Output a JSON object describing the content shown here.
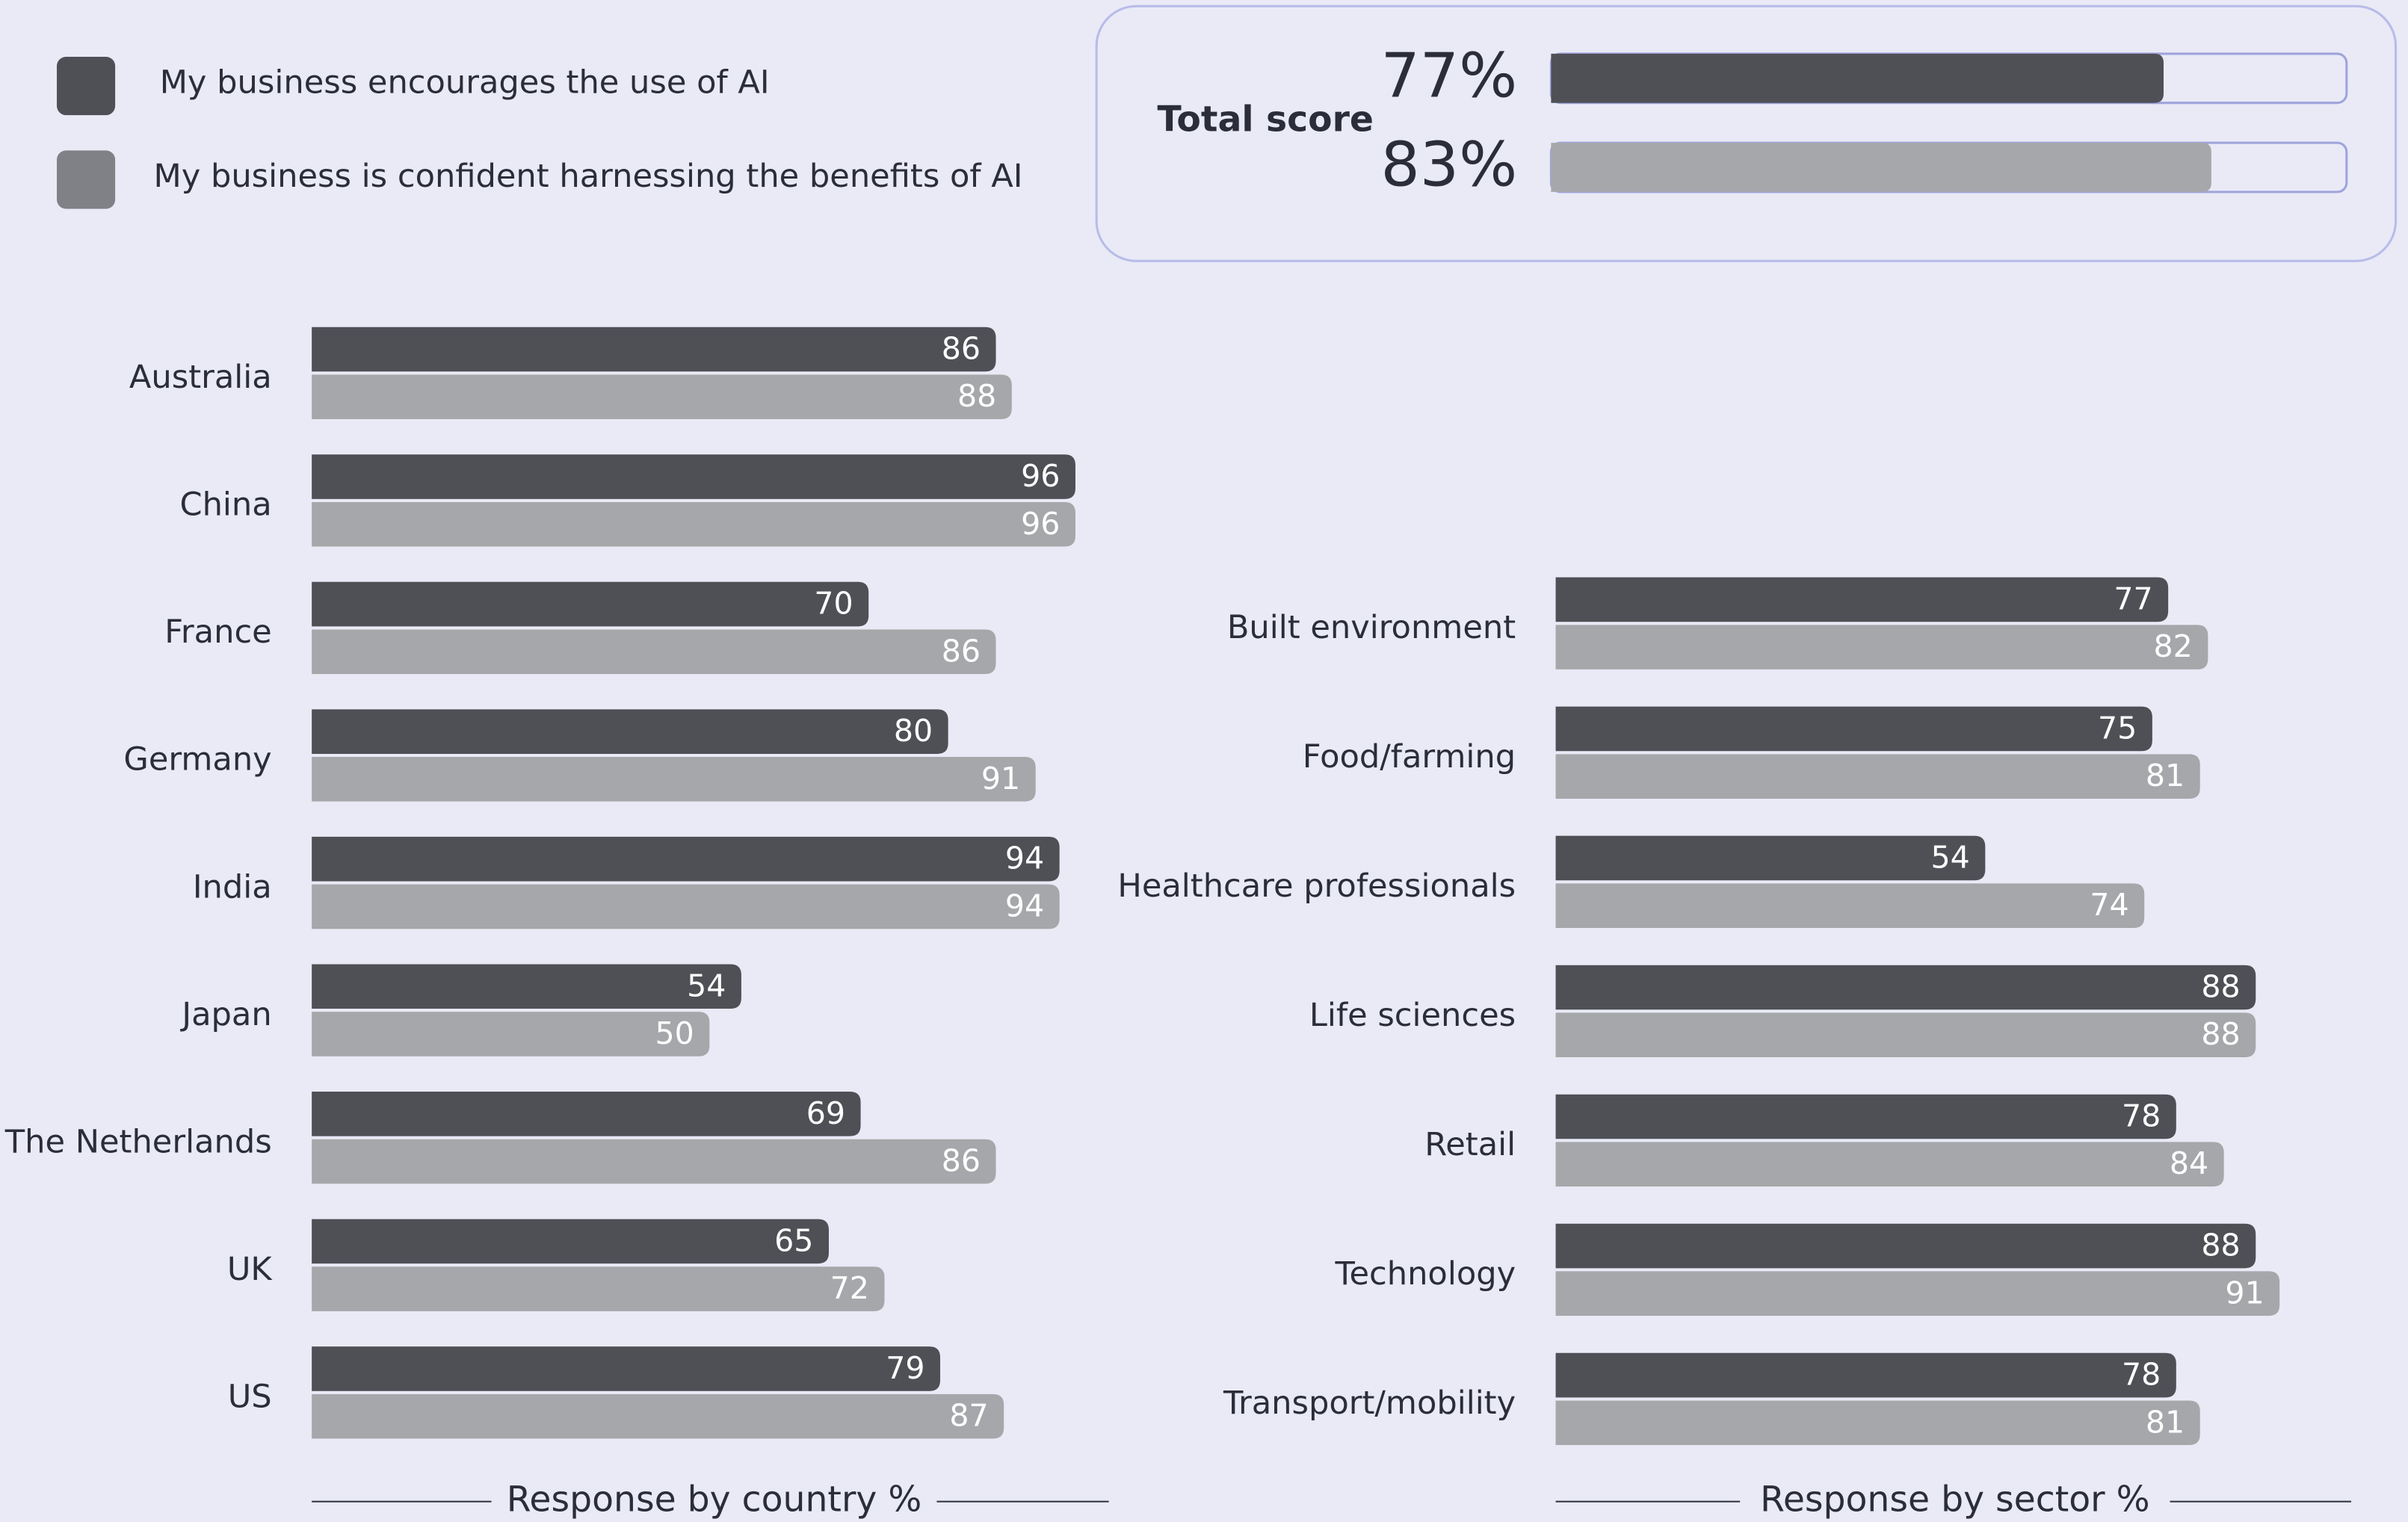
{
  "legend": [
    {
      "name": "My business encourages the use of AI",
      "color": "#4f5056"
    },
    {
      "name": "My business is confident harnessing the benefits of AI",
      "color": "#808186"
    }
  ],
  "chart_data": [
    {
      "type": "bar",
      "title": "Total score",
      "series": [
        {
          "color": "#4f5056",
          "values": [
            77
          ],
          "value_labels": [
            "77%"
          ]
        },
        {
          "color": "#a6a7aa",
          "values": [
            83
          ],
          "value_labels": [
            "83%"
          ]
        }
      ]
    },
    {
      "type": "bar",
      "xlabel": "Response by country %",
      "categories": [
        "Australia",
        "China",
        "France",
        "Germany",
        "India",
        "Japan",
        "The Netherlands",
        "UK",
        "US"
      ],
      "series": [
        {
          "color": "#4f5056",
          "values": [
            86,
            96,
            70,
            80,
            94,
            54,
            69,
            65,
            79
          ]
        },
        {
          "color": "#a6a7aa",
          "values": [
            88,
            96,
            86,
            91,
            94,
            50,
            86,
            72,
            87
          ]
        }
      ]
    },
    {
      "type": "bar",
      "xlabel": "Response by sector %",
      "categories": [
        "Built environment",
        "Food/farming",
        "Healthcare professionals",
        "Life sciences",
        "Retail",
        "Technology",
        "Transport/mobility"
      ],
      "series": [
        {
          "color": "#4f5056",
          "values": [
            77,
            75,
            54,
            88,
            78,
            88,
            78
          ]
        },
        {
          "color": "#a6a7aa",
          "values": [
            82,
            81,
            74,
            88,
            84,
            91,
            81
          ]
        }
      ]
    }
  ]
}
